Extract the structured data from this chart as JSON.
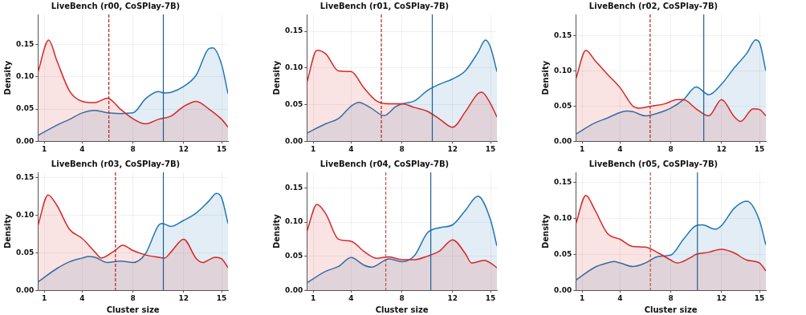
{
  "chart_data": [
    {
      "type": "area",
      "title": "LiveBench (r00, CoSPlay-7B)",
      "ylabel": "Density",
      "xlim": [
        0.5,
        15.5
      ],
      "xticks": [
        1,
        4,
        8,
        12,
        15
      ],
      "ylim": [
        0,
        0.197
      ],
      "yticks": [
        {
          "value": 0,
          "label": "0.00"
        },
        {
          "value": 0.05,
          "label": "0.05"
        },
        {
          "value": 0.1,
          "label": "0.10"
        },
        {
          "value": 0.15,
          "label": "0.15"
        }
      ],
      "grid": true,
      "legend": false,
      "marker": "none",
      "series": [
        {
          "color": "#d62728",
          "x": [
            0.5,
            1.35,
            2,
            3,
            4,
            5,
            6,
            7,
            8,
            9,
            10,
            11,
            12,
            13,
            14,
            15,
            15.5
          ],
          "values": [
            0.107,
            0.157,
            0.125,
            0.078,
            0.062,
            0.06,
            0.067,
            0.05,
            0.035,
            0.027,
            0.034,
            0.039,
            0.054,
            0.062,
            0.05,
            0.034,
            0.022
          ]
        },
        {
          "color": "#1f77b4",
          "x": [
            0.5,
            2,
            3,
            4,
            5,
            6,
            7,
            8,
            9,
            10,
            10.5,
            11,
            12,
            13,
            14,
            14.3,
            15,
            15.5
          ],
          "values": [
            0.009,
            0.025,
            0.034,
            0.044,
            0.048,
            0.044,
            0.043,
            0.044,
            0.066,
            0.077,
            0.075,
            0.076,
            0.085,
            0.103,
            0.144,
            0.145,
            0.119,
            0.074
          ]
        }
      ],
      "ref_lines": [
        {
          "axis": "x",
          "value": 6.1,
          "color": "#b22222",
          "line_style": "dashed"
        },
        {
          "axis": "x",
          "value": 10.4,
          "color": "#1f5f94",
          "line_style": "solid"
        }
      ]
    },
    {
      "type": "area",
      "title": "LiveBench (r01, CoSPlay-7B)",
      "ylabel": "Density",
      "xlim": [
        0.5,
        15.5
      ],
      "xticks": [
        1,
        4,
        8,
        12,
        15
      ],
      "ylim": [
        0,
        0.173
      ],
      "yticks": [
        {
          "value": 0,
          "label": "0.00"
        },
        {
          "value": 0.05,
          "label": "0.05"
        },
        {
          "value": 0.1,
          "label": "0.10"
        },
        {
          "value": 0.15,
          "label": "0.15"
        }
      ],
      "grid": true,
      "legend": false,
      "marker": "none",
      "series": [
        {
          "color": "#d62728",
          "x": [
            0.5,
            1.3,
            2,
            3,
            4,
            5,
            6,
            7,
            8,
            9,
            10,
            11,
            12,
            13,
            14,
            14.3,
            15,
            15.5
          ],
          "values": [
            0.08,
            0.124,
            0.119,
            0.096,
            0.095,
            0.073,
            0.055,
            0.051,
            0.051,
            0.046,
            0.041,
            0.03,
            0.019,
            0.04,
            0.065,
            0.067,
            0.051,
            0.033
          ]
        },
        {
          "color": "#1f77b4",
          "x": [
            0.5,
            2,
            3,
            4,
            4.6,
            5.5,
            6.6,
            7.5,
            8,
            9,
            10,
            11,
            12,
            13,
            14,
            14.6,
            15,
            15.5
          ],
          "values": [
            0.011,
            0.024,
            0.031,
            0.048,
            0.053,
            0.046,
            0.035,
            0.047,
            0.051,
            0.055,
            0.069,
            0.078,
            0.085,
            0.096,
            0.121,
            0.138,
            0.128,
            0.095
          ]
        }
      ],
      "ref_lines": [
        {
          "axis": "x",
          "value": 6.38,
          "color": "#b22222",
          "line_style": "dashed"
        },
        {
          "axis": "x",
          "value": 10.4,
          "color": "#1f5f94",
          "line_style": "solid"
        }
      ]
    },
    {
      "type": "area",
      "title": "LiveBench (r02, CoSPlay-7B)",
      "ylabel": "Density",
      "xlim": [
        0.5,
        15.5
      ],
      "xticks": [
        1,
        4,
        8,
        12,
        15
      ],
      "ylim": [
        0,
        0.18
      ],
      "yticks": [
        {
          "value": 0,
          "label": "0.00"
        },
        {
          "value": 0.05,
          "label": "0.05"
        },
        {
          "value": 0.1,
          "label": "0.10"
        },
        {
          "value": 0.15,
          "label": "0.15"
        }
      ],
      "grid": true,
      "legend": false,
      "marker": "none",
      "series": [
        {
          "color": "#d62728",
          "x": [
            0.5,
            1.3,
            2,
            3,
            4,
            5,
            5.5,
            6.5,
            7.5,
            8.5,
            9,
            10,
            11,
            12,
            13,
            13.5,
            14.5,
            15,
            15.5
          ],
          "values": [
            0.088,
            0.129,
            0.115,
            0.095,
            0.076,
            0.05,
            0.047,
            0.05,
            0.053,
            0.059,
            0.059,
            0.046,
            0.036,
            0.059,
            0.035,
            0.028,
            0.046,
            0.045,
            0.036
          ]
        },
        {
          "color": "#1f77b4",
          "x": [
            0.5,
            2,
            3,
            4,
            4.5,
            5,
            6,
            7,
            8,
            9,
            10,
            11,
            12,
            13,
            14,
            14.7,
            15,
            15.5
          ],
          "values": [
            0.01,
            0.026,
            0.033,
            0.041,
            0.043,
            0.042,
            0.036,
            0.04,
            0.047,
            0.059,
            0.077,
            0.066,
            0.081,
            0.104,
            0.125,
            0.144,
            0.14,
            0.1
          ]
        }
      ],
      "ref_lines": [
        {
          "axis": "x",
          "value": 6.37,
          "color": "#b22222",
          "line_style": "dashed"
        },
        {
          "axis": "x",
          "value": 10.6,
          "color": "#1f5f94",
          "line_style": "solid"
        }
      ]
    },
    {
      "type": "area",
      "title": "LiveBench (r03, CoSPlay-7B)",
      "xlabel": "Cluster size",
      "ylabel": "Density",
      "xlim": [
        0.5,
        15.5
      ],
      "xticks": [
        1,
        4,
        8,
        12,
        15
      ],
      "ylim": [
        0,
        0.157
      ],
      "yticks": [
        {
          "value": 0,
          "label": "0.00"
        },
        {
          "value": 0.05,
          "label": "0.05"
        },
        {
          "value": 0.1,
          "label": "0.10"
        },
        {
          "value": 0.15,
          "label": "0.15"
        }
      ],
      "grid": true,
      "legend": false,
      "marker": "none",
      "series": [
        {
          "color": "#d62728",
          "x": [
            0.5,
            1.3,
            2,
            3,
            4,
            5,
            5.5,
            6.5,
            7.2,
            8,
            9,
            10,
            10.5,
            11,
            12,
            13,
            13.5,
            14.5,
            15,
            15.5
          ],
          "values": [
            0.086,
            0.127,
            0.113,
            0.081,
            0.069,
            0.051,
            0.043,
            0.052,
            0.06,
            0.053,
            0.047,
            0.044,
            0.043,
            0.051,
            0.068,
            0.042,
            0.037,
            0.044,
            0.042,
            0.03
          ]
        },
        {
          "color": "#1f77b4",
          "x": [
            0.5,
            2,
            3,
            4,
            4.5,
            5,
            6,
            7,
            8,
            9,
            10,
            10.3,
            11,
            12,
            13,
            14,
            14.6,
            15,
            15.5
          ],
          "values": [
            0.011,
            0.029,
            0.038,
            0.043,
            0.045,
            0.044,
            0.037,
            0.039,
            0.037,
            0.049,
            0.086,
            0.089,
            0.085,
            0.093,
            0.103,
            0.119,
            0.129,
            0.123,
            0.089
          ]
        }
      ],
      "ref_lines": [
        {
          "axis": "x",
          "value": 6.62,
          "color": "#b22222",
          "line_style": "dashed"
        },
        {
          "axis": "x",
          "value": 10.4,
          "color": "#1f5f94",
          "line_style": "solid"
        }
      ]
    },
    {
      "type": "area",
      "title": "LiveBench (r04, CoSPlay-7B)",
      "xlabel": "Cluster size",
      "ylabel": "Density",
      "xlim": [
        0.5,
        15.5
      ],
      "xticks": [
        1,
        4,
        8,
        12,
        15
      ],
      "ylim": [
        0,
        0.173
      ],
      "yticks": [
        {
          "value": 0,
          "label": "0.00"
        },
        {
          "value": 0.05,
          "label": "0.05"
        },
        {
          "value": 0.1,
          "label": "0.10"
        },
        {
          "value": 0.15,
          "label": "0.15"
        }
      ],
      "grid": true,
      "legend": false,
      "marker": "none",
      "series": [
        {
          "color": "#d62728",
          "x": [
            0.5,
            1.3,
            2,
            3,
            4,
            5,
            6,
            7,
            8,
            9,
            10,
            11,
            12,
            13,
            13.5,
            14.5,
            15,
            15.5
          ],
          "values": [
            0.086,
            0.126,
            0.112,
            0.075,
            0.072,
            0.057,
            0.047,
            0.049,
            0.045,
            0.045,
            0.05,
            0.058,
            0.074,
            0.054,
            0.04,
            0.044,
            0.04,
            0.033
          ]
        },
        {
          "color": "#1f77b4",
          "x": [
            0.5,
            2,
            3,
            4,
            5,
            5.6,
            7,
            8,
            9,
            10,
            11,
            12,
            13,
            14,
            15,
            15.5
          ],
          "values": [
            0.011,
            0.028,
            0.035,
            0.048,
            0.037,
            0.034,
            0.046,
            0.042,
            0.051,
            0.084,
            0.092,
            0.096,
            0.117,
            0.138,
            0.103,
            0.065
          ]
        }
      ],
      "ref_lines": [
        {
          "axis": "x",
          "value": 6.73,
          "color": "#c0504d",
          "line_style": "dashed"
        },
        {
          "axis": "x",
          "value": 10.28,
          "color": "#1f5f94",
          "line_style": "solid"
        }
      ]
    },
    {
      "type": "area",
      "title": "LiveBench (r05, CoSPlay-7B)",
      "xlabel": "Cluster size",
      "ylabel": "Density",
      "xlim": [
        0.5,
        15.5
      ],
      "xticks": [
        1,
        4,
        8,
        12,
        15
      ],
      "ylim": [
        0,
        0.164
      ],
      "yticks": [
        {
          "value": 0,
          "label": "0.00"
        },
        {
          "value": 0.05,
          "label": "0.05"
        },
        {
          "value": 0.1,
          "label": "0.10"
        },
        {
          "value": 0.15,
          "label": "0.15"
        }
      ],
      "grid": true,
      "legend": false,
      "marker": "none",
      "series": [
        {
          "color": "#d62728",
          "x": [
            0.5,
            1.3,
            2,
            3,
            4,
            5,
            6,
            7,
            8,
            8.5,
            9.5,
            10,
            11,
            12,
            13,
            14,
            15,
            15.5
          ],
          "values": [
            0.092,
            0.132,
            0.112,
            0.079,
            0.071,
            0.061,
            0.06,
            0.052,
            0.042,
            0.038,
            0.045,
            0.05,
            0.053,
            0.057,
            0.052,
            0.042,
            0.038,
            0.027
          ]
        },
        {
          "color": "#1f77b4",
          "x": [
            0.5,
            2,
            3,
            3.5,
            4,
            5,
            6,
            7,
            8,
            9,
            10,
            10.5,
            11.5,
            12,
            13,
            14,
            15,
            15.5
          ],
          "values": [
            0.014,
            0.032,
            0.038,
            0.04,
            0.038,
            0.033,
            0.038,
            0.047,
            0.049,
            0.071,
            0.09,
            0.091,
            0.085,
            0.09,
            0.114,
            0.124,
            0.097,
            0.063
          ]
        }
      ],
      "ref_lines": [
        {
          "axis": "x",
          "value": 6.39,
          "color": "#c0504d",
          "line_style": "dashed"
        },
        {
          "axis": "x",
          "value": 10.1,
          "color": "#1f5f94",
          "line_style": "solid"
        }
      ]
    }
  ]
}
